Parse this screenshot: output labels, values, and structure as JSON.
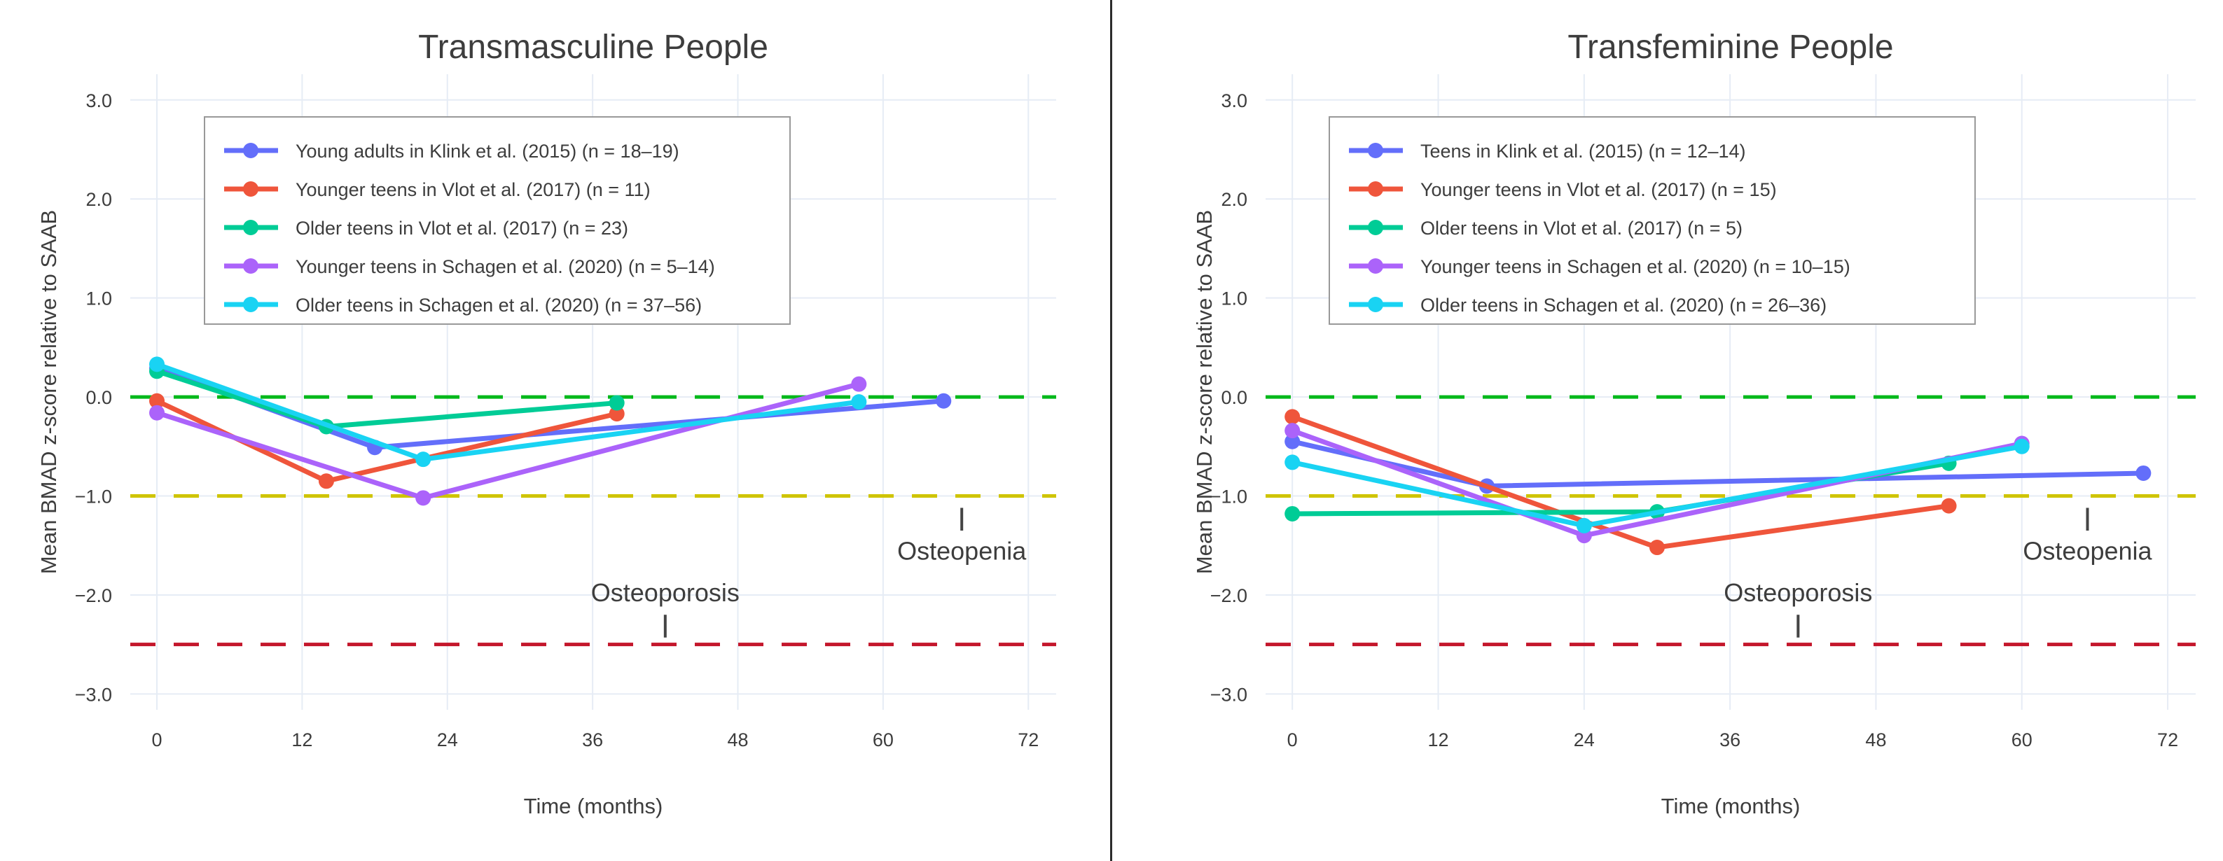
{
  "layout_colors": {
    "background": "#FFFFFF",
    "text": "#3D3D3D",
    "grid": "#E6ECF5",
    "legend_border": "#999999",
    "divider": "#2B2B2B",
    "annotation_tick": "#444444"
  },
  "chart_data": [
    {
      "type": "line",
      "title": "Transmasculine People",
      "xlabel": "Time (months)",
      "ylabel": "Mean BMAD z-score relative to SAAB",
      "xlim": [
        -2.2,
        74.3
      ],
      "ylim": [
        -3.16,
        3.26
      ],
      "grid": true,
      "legend_position": "top-left-inside",
      "x_ticks": [
        {
          "v": 0,
          "label": "0"
        },
        {
          "v": 12,
          "label": "12"
        },
        {
          "v": 24,
          "label": "24"
        },
        {
          "v": 36,
          "label": "36"
        },
        {
          "v": 48,
          "label": "48"
        },
        {
          "v": 60,
          "label": "60"
        },
        {
          "v": 72,
          "label": "72"
        }
      ],
      "y_ticks": [
        {
          "v": 3,
          "label": "3.0"
        },
        {
          "v": 2,
          "label": "2.0"
        },
        {
          "v": 1,
          "label": "1.0"
        },
        {
          "v": 0,
          "label": "0.0"
        },
        {
          "v": -1,
          "label": "−1.0"
        },
        {
          "v": -2,
          "label": "−2.0"
        },
        {
          "v": -3,
          "label": "−3.0"
        }
      ],
      "reference_lines": [
        {
          "y": 0,
          "color": "#00B81A",
          "meaning": "zero z-score"
        },
        {
          "y": -1,
          "color": "#CFC400",
          "meaning": "osteopenia threshold"
        },
        {
          "y": -2.5,
          "color": "#C4162B",
          "meaning": "osteoporosis threshold"
        }
      ],
      "annotations": [
        {
          "text": "Osteoporosis",
          "x": 42,
          "label_y": -1.98,
          "tick_y1": -2.2,
          "tick_y2": -2.43
        },
        {
          "text": "Osteopenia",
          "x": 66.5,
          "label_y": -1.56,
          "tick_y1": -1.12,
          "tick_y2": -1.35
        }
      ],
      "series": [
        {
          "name": "Young adults in Klink et al. (2015) (n = 18–19)",
          "color": "#636EFA",
          "points": [
            [
              0,
              0.29
            ],
            [
              18,
              -0.51
            ],
            [
              65,
              -0.04
            ]
          ]
        },
        {
          "name": "Younger teens in Vlot et al. (2017) (n = 11)",
          "color": "#EF553B",
          "points": [
            [
              0,
              -0.04
            ],
            [
              14,
              -0.85
            ],
            [
              38,
              -0.17
            ]
          ]
        },
        {
          "name": "Older teens in Vlot et al. (2017) (n = 23)",
          "color": "#00CC96",
          "points": [
            [
              0,
              0.26
            ],
            [
              14,
              -0.3
            ],
            [
              38,
              -0.06
            ]
          ]
        },
        {
          "name": "Younger teens in Schagen et al. (2020) (n = 5–14)",
          "color": "#AB63FA",
          "points": [
            [
              0,
              -0.16
            ],
            [
              22,
              -1.02
            ],
            [
              58,
              0.13
            ]
          ]
        },
        {
          "name": "Older teens in Schagen et al. (2020) (n = 37–56)",
          "color": "#19D3F3",
          "points": [
            [
              0,
              0.33
            ],
            [
              22,
              -0.63
            ],
            [
              58,
              -0.05
            ]
          ]
        }
      ]
    },
    {
      "type": "line",
      "title": "Transfeminine People",
      "xlabel": "Time (months)",
      "ylabel": "Mean BMAD z-score relative to SAAB",
      "xlim": [
        -2.2,
        74.3
      ],
      "ylim": [
        -3.16,
        3.26
      ],
      "grid": true,
      "legend_position": "top-left-inside",
      "x_ticks": [
        {
          "v": 0,
          "label": "0"
        },
        {
          "v": 12,
          "label": "12"
        },
        {
          "v": 24,
          "label": "24"
        },
        {
          "v": 36,
          "label": "36"
        },
        {
          "v": 48,
          "label": "48"
        },
        {
          "v": 60,
          "label": "60"
        },
        {
          "v": 72,
          "label": "72"
        }
      ],
      "y_ticks": [
        {
          "v": 3,
          "label": "3.0"
        },
        {
          "v": 2,
          "label": "2.0"
        },
        {
          "v": 1,
          "label": "1.0"
        },
        {
          "v": 0,
          "label": "0.0"
        },
        {
          "v": -1,
          "label": "−1.0"
        },
        {
          "v": -2,
          "label": "−2.0"
        },
        {
          "v": -3,
          "label": "−3.0"
        }
      ],
      "reference_lines": [
        {
          "y": 0,
          "color": "#00B81A",
          "meaning": "zero z-score"
        },
        {
          "y": -1,
          "color": "#CFC400",
          "meaning": "osteopenia threshold"
        },
        {
          "y": -2.5,
          "color": "#C4162B",
          "meaning": "osteoporosis threshold"
        }
      ],
      "annotations": [
        {
          "text": "Osteoporosis",
          "x": 41.6,
          "label_y": -1.98,
          "tick_y1": -2.2,
          "tick_y2": -2.43
        },
        {
          "text": "Osteopenia",
          "x": 65.4,
          "label_y": -1.56,
          "tick_y1": -1.12,
          "tick_y2": -1.35
        }
      ],
      "series": [
        {
          "name": "Teens in Klink et al. (2015) (n = 12–14)",
          "color": "#636EFA",
          "points": [
            [
              0,
              -0.45
            ],
            [
              16,
              -0.9
            ],
            [
              70,
              -0.77
            ]
          ]
        },
        {
          "name": "Younger teens in Vlot et al. (2017) (n = 15)",
          "color": "#EF553B",
          "points": [
            [
              0,
              -0.2
            ],
            [
              30,
              -1.52
            ],
            [
              54,
              -1.1
            ]
          ]
        },
        {
          "name": "Older teens in Vlot et al. (2017) (n = 5)",
          "color": "#00CC96",
          "points": [
            [
              0,
              -1.18
            ],
            [
              30,
              -1.16
            ],
            [
              54,
              -0.67
            ]
          ]
        },
        {
          "name": "Younger teens in Schagen et al. (2020) (n = 10–15)",
          "color": "#AB63FA",
          "points": [
            [
              0,
              -0.34
            ],
            [
              24,
              -1.4
            ],
            [
              60,
              -0.47
            ]
          ]
        },
        {
          "name": "Older teens in Schagen et al. (2020) (n = 26–36)",
          "color": "#19D3F3",
          "points": [
            [
              0,
              -0.66
            ],
            [
              24,
              -1.3
            ],
            [
              60,
              -0.5
            ]
          ]
        }
      ]
    }
  ]
}
